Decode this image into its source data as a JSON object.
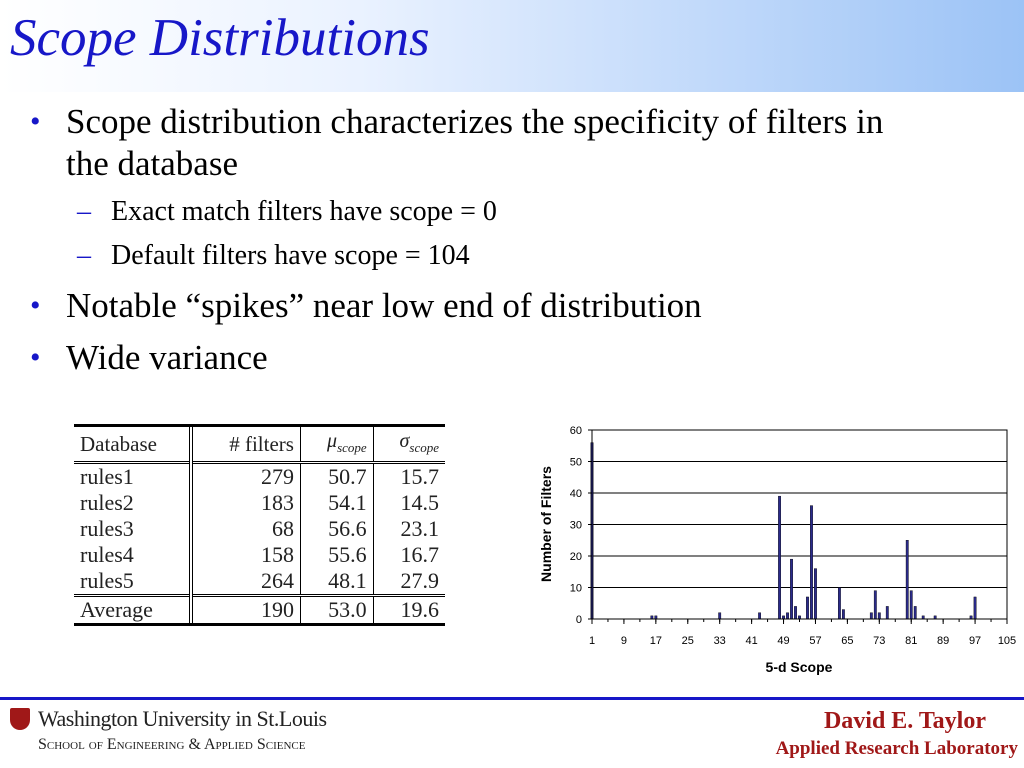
{
  "slide": {
    "title": "Scope Distributions",
    "bullets": [
      {
        "line1": "Scope distribution characterizes the specificity of filters in",
        "line2": "the database"
      },
      {
        "line1": "Notable “spikes” near low end of distribution"
      },
      {
        "line1": "Wide variance"
      }
    ],
    "sub_bullets": [
      "Exact match filters have scope = 0",
      "Default filters have scope = 104"
    ],
    "bullet_glyph": "•",
    "dash_glyph": "–"
  },
  "table": {
    "headers": {
      "database": "Database",
      "filters": "# filters",
      "mu": "μ",
      "mu_sub": "scope",
      "sigma": "σ",
      "sigma_sub": "scope"
    },
    "rows": [
      {
        "name": "rules1",
        "filters": "279",
        "mu": "50.7",
        "sigma": "15.7"
      },
      {
        "name": "rules2",
        "filters": "183",
        "mu": "54.1",
        "sigma": "14.5"
      },
      {
        "name": "rules3",
        "filters": "68",
        "mu": "56.6",
        "sigma": "23.1"
      },
      {
        "name": "rules4",
        "filters": "158",
        "mu": "55.6",
        "sigma": "16.7"
      },
      {
        "name": "rules5",
        "filters": "264",
        "mu": "48.1",
        "sigma": "27.9"
      }
    ],
    "average": {
      "name": "Average",
      "filters": "190",
      "mu": "53.0",
      "sigma": "19.6"
    }
  },
  "chart_data": {
    "type": "bar",
    "xlabel": "5-d Scope",
    "ylabel": "Number of Filters",
    "xlim": [
      1,
      105
    ],
    "ylim": [
      0,
      60
    ],
    "x_ticks": [
      1,
      9,
      17,
      25,
      33,
      41,
      49,
      57,
      65,
      73,
      81,
      89,
      97,
      105
    ],
    "y_ticks": [
      0,
      10,
      20,
      30,
      40,
      50,
      60
    ],
    "grid": true,
    "bar_color": "#2b2b8c",
    "x": [
      1,
      16,
      17,
      33,
      43,
      48,
      49,
      50,
      51,
      52,
      53,
      55,
      56,
      57,
      63,
      64,
      71,
      72,
      73,
      75,
      80,
      81,
      82,
      84,
      87,
      96,
      97
    ],
    "values": [
      56,
      1,
      1,
      2,
      2,
      39,
      1,
      2,
      19,
      4,
      1,
      7,
      36,
      16,
      10,
      3,
      2,
      9,
      2,
      4,
      25,
      9,
      4,
      1,
      1,
      1,
      7
    ]
  },
  "footer": {
    "university": "Washington University in St.Louis",
    "school": "School of Engineering & Applied Science",
    "author": "David E. Taylor",
    "lab": "Applied Research Laboratory"
  },
  "colors": {
    "title": "#1717c8",
    "accent_red": "#a01818",
    "rule": "#1717c8"
  }
}
